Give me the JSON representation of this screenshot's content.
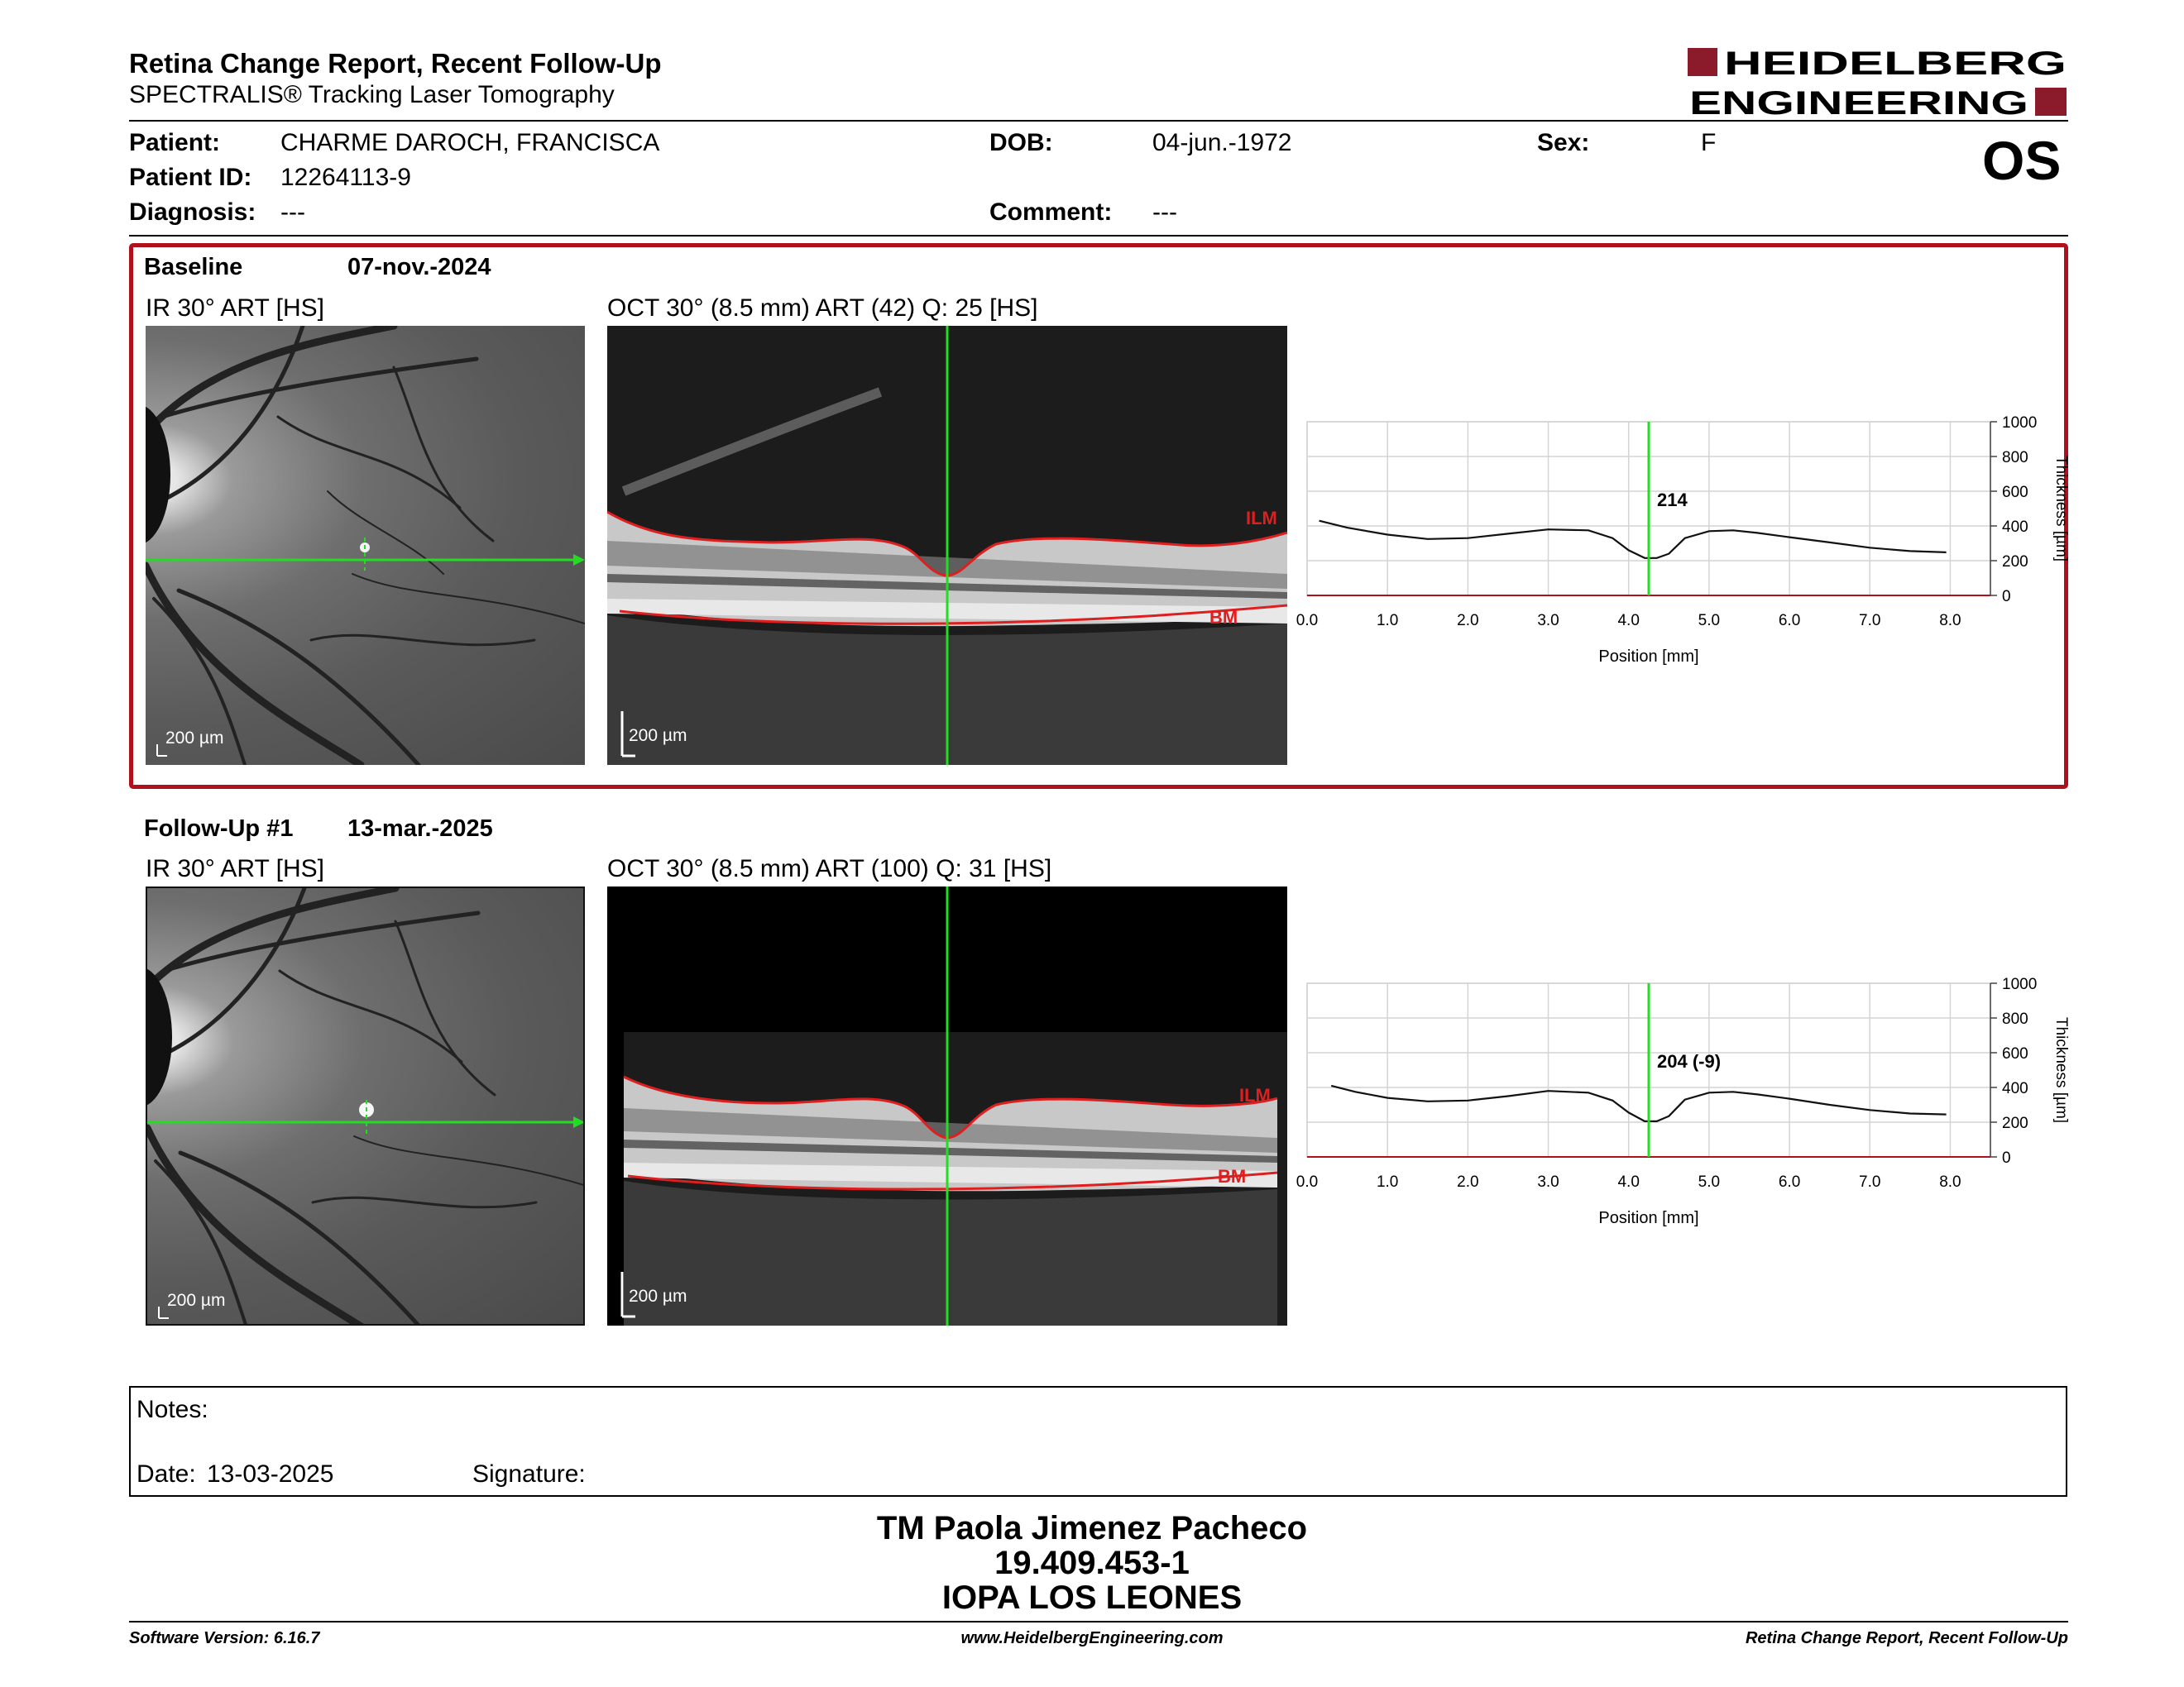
{
  "header": {
    "title": "Retina Change Report, Recent Follow-Up",
    "subtitle": "SPECTRALIS® Tracking Laser Tomography",
    "logo_line1": "HEIDELBERG",
    "logo_line2": "ENGINEERING",
    "brand_color": "#8b1a2b"
  },
  "patient": {
    "patient_label": "Patient:",
    "patient_name": "CHARME DAROCH, FRANCISCA",
    "id_label": "Patient ID:",
    "id": "12264113-9",
    "diagnosis_label": "Diagnosis:",
    "diagnosis": "---",
    "dob_label": "DOB:",
    "dob": "04-jun.-1972",
    "comment_label": "Comment:",
    "comment": "---",
    "sex_label": "Sex:",
    "sex": "F",
    "eye": "OS"
  },
  "baseline": {
    "label": "Baseline",
    "date": "07-nov.-2024",
    "ir_caption": "IR 30° ART [HS]",
    "oct_caption": "OCT 30° (8.5 mm) ART (42) Q: 25 [HS]",
    "scale_ir": "200 µm",
    "scale_oct": "200 µm",
    "ilm": "ILM",
    "bm": "BM",
    "highlight_color": "#b0101c"
  },
  "followup": {
    "label": "Follow-Up #1",
    "date": "13-mar.-2025",
    "ir_caption": "IR 30° ART [HS]",
    "oct_caption": "OCT 30° (8.5 mm) ART (100) Q: 31 [HS]",
    "scale_ir": "200 µm",
    "scale_oct": "200 µm",
    "ilm": "ILM",
    "bm": "BM"
  },
  "chart_data": [
    {
      "type": "line",
      "xlabel": "Position [mm]",
      "ylabel": "Thickness [µm]",
      "xlim": [
        0.0,
        8.5
      ],
      "ylim": [
        0,
        1000
      ],
      "xticks": [
        "0.0",
        "1.0",
        "2.0",
        "3.0",
        "4.0",
        "5.0",
        "6.0",
        "7.0",
        "8.0"
      ],
      "yticks": [
        "0",
        "200",
        "400",
        "600",
        "800",
        "1000"
      ],
      "grid": true,
      "marker_x": 4.25,
      "marker_label": "214",
      "x": [
        0.15,
        0.5,
        1.0,
        1.5,
        2.0,
        2.5,
        3.0,
        3.5,
        3.8,
        4.0,
        4.2,
        4.35,
        4.5,
        4.7,
        5.0,
        5.3,
        5.6,
        6.0,
        6.5,
        7.0,
        7.5,
        7.95
      ],
      "y": [
        430,
        390,
        350,
        325,
        330,
        355,
        380,
        375,
        330,
        260,
        215,
        215,
        240,
        330,
        370,
        375,
        360,
        335,
        305,
        275,
        255,
        248
      ]
    },
    {
      "type": "line",
      "xlabel": "Position [mm]",
      "ylabel": "Thickness [µm]",
      "xlim": [
        0.0,
        8.5
      ],
      "ylim": [
        0,
        1000
      ],
      "xticks": [
        "0.0",
        "1.0",
        "2.0",
        "3.0",
        "4.0",
        "5.0",
        "6.0",
        "7.0",
        "8.0"
      ],
      "yticks": [
        "0",
        "200",
        "400",
        "600",
        "800",
        "1000"
      ],
      "grid": true,
      "marker_x": 4.25,
      "marker_label": "204 (-9)",
      "x": [
        0.3,
        0.6,
        1.0,
        1.5,
        2.0,
        2.5,
        3.0,
        3.5,
        3.8,
        4.0,
        4.2,
        4.35,
        4.5,
        4.7,
        5.0,
        5.3,
        5.6,
        6.0,
        6.5,
        7.0,
        7.5,
        7.95
      ],
      "y": [
        410,
        375,
        340,
        320,
        325,
        350,
        380,
        370,
        325,
        255,
        205,
        205,
        235,
        330,
        370,
        375,
        360,
        335,
        300,
        270,
        250,
        245
      ]
    }
  ],
  "notes": {
    "notes_label": "Notes:",
    "date_label": "Date:",
    "date": "13-03-2025",
    "signature_label": "Signature:"
  },
  "signature": {
    "name": "TM Paola Jimenez Pacheco",
    "rut": "19.409.453-1",
    "place": "IOPA LOS LEONES"
  },
  "footer": {
    "software": "Software Version: 6.16.7",
    "website": "www.HeidelbergEngineering.com",
    "report": "Retina Change Report, Recent Follow-Up"
  }
}
